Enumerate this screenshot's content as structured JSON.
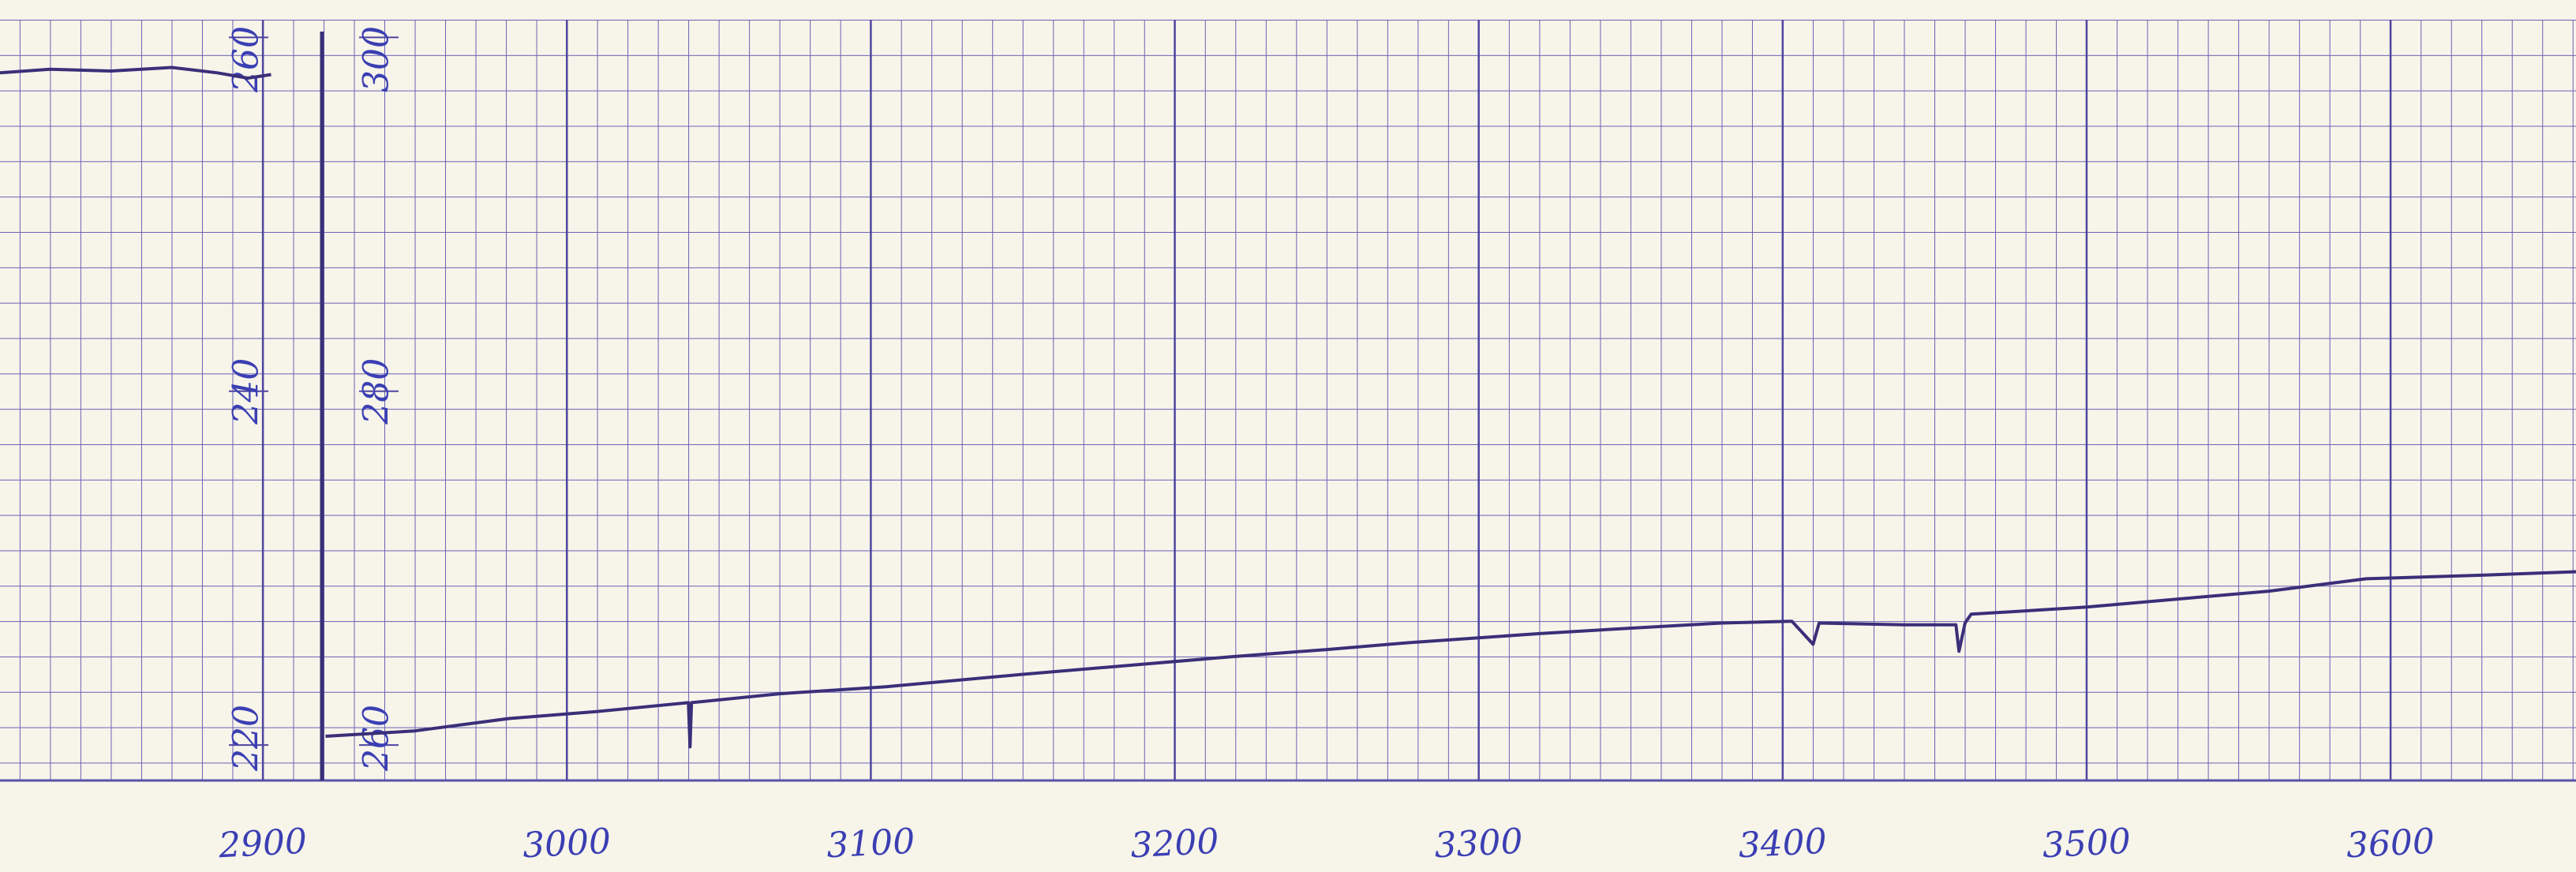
{
  "chart_data": {
    "type": "line",
    "x": [
      2813.5,
      2830,
      2850,
      2870,
      2885,
      2895,
      2902.7,
      2920.6,
      2950,
      2981,
      3010,
      3040,
      3040.5,
      3041,
      3070,
      3105,
      3150,
      3219,
      3250,
      3278,
      3320,
      3349,
      3380,
      3403,
      3410,
      3412,
      3440,
      3457,
      3458,
      3460,
      3462,
      3500,
      3533,
      3560,
      3592,
      3630,
      3661
    ],
    "series": [
      {
        "color": "#3a2f78",
        "values": [
          258.0,
          258.2,
          258.1,
          258.3,
          258.0,
          257.7,
          257.9,
          null,
          null,
          null,
          null,
          null,
          null,
          null,
          null,
          null,
          null,
          null,
          null,
          null,
          null,
          null,
          null,
          null,
          null,
          null,
          null,
          null,
          null,
          null,
          null,
          null,
          null,
          null,
          null,
          null,
          null
        ]
      },
      {
        "color": "#3a2f78",
        "axis": "y2",
        "values": [
          null,
          null,
          null,
          null,
          null,
          null,
          null,
          260.5,
          260.8,
          261.5,
          261.9,
          262.4,
          259.9,
          262.4,
          262.9,
          263.3,
          264.0,
          265.0,
          265.4,
          265.8,
          266.3,
          266.6,
          266.9,
          267.0,
          265.7,
          266.9,
          266.8,
          266.8,
          265.3,
          266.9,
          267.4,
          267.8,
          268.3,
          268.7,
          269.4,
          269.6,
          269.8
        ]
      }
    ],
    "xlim": [
      2813.5,
      3661
    ],
    "xticks": [
      2900,
      3000,
      3100,
      3200,
      3300,
      3400,
      3500,
      3600
    ],
    "ylim": [
      218,
      261
    ],
    "yticks": [
      220,
      240,
      260
    ],
    "y2lim": [
      258,
      301
    ],
    "y2ticks": [
      260,
      280,
      300
    ],
    "grid": true
  }
}
